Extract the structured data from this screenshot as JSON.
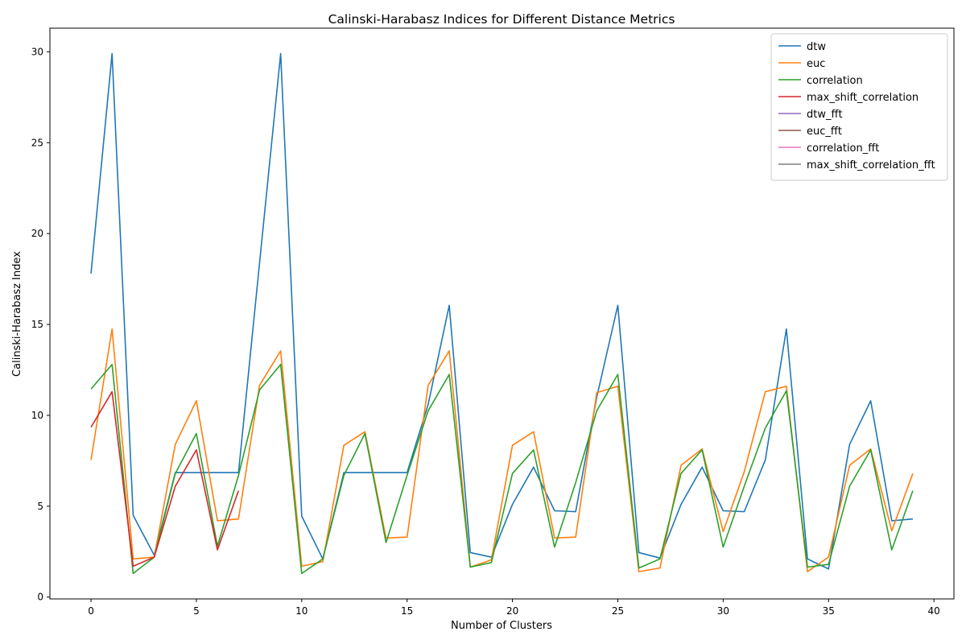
{
  "chart_data": {
    "type": "line",
    "title": "Calinski-Harabasz Indices for Different Distance Metrics",
    "xlabel": "Number of Clusters",
    "ylabel": "Calinski-Harabasz Index",
    "xlim": [
      -1.95,
      40.95
    ],
    "ylim": [
      -0.1,
      31.3
    ],
    "xticks": [
      0,
      5,
      10,
      15,
      20,
      25,
      30,
      35,
      40
    ],
    "yticks": [
      0,
      5,
      10,
      15,
      20,
      25,
      30
    ],
    "grid": false,
    "legend_position": "top-right",
    "series": [
      {
        "name": "dtw",
        "color": "#1f77b4",
        "x": [
          0,
          1,
          2,
          3,
          4,
          5,
          6,
          7,
          8,
          9,
          10,
          11,
          12,
          13,
          14,
          15,
          16,
          17,
          18,
          19,
          20,
          21,
          22,
          23,
          24,
          25,
          26,
          27,
          28,
          29,
          30,
          31,
          32,
          33,
          34,
          35,
          36,
          37,
          38,
          39
        ],
        "values": [
          17.8,
          29.9,
          4.5,
          2.3,
          6.85,
          6.85,
          6.85,
          6.85,
          18.4,
          29.9,
          4.45,
          2.1,
          6.85,
          6.85,
          6.85,
          6.85,
          10.6,
          16.05,
          2.45,
          2.2,
          5.1,
          7.15,
          4.75,
          4.7,
          11.0,
          16.05,
          2.45,
          2.15,
          5.1,
          7.15,
          4.75,
          4.7,
          7.55,
          14.75,
          2.1,
          1.55,
          8.4,
          10.8,
          4.2,
          4.3
        ]
      },
      {
        "name": "euc",
        "color": "#ff7f0e",
        "x": [
          0,
          1,
          2,
          3,
          4,
          5,
          6,
          7,
          8,
          9,
          10,
          11,
          12,
          13,
          14,
          15,
          16,
          17,
          18,
          19,
          20,
          21,
          22,
          23,
          24,
          25,
          26,
          27,
          28,
          29,
          30,
          31,
          32,
          33,
          34,
          35,
          36,
          37,
          38,
          39
        ],
        "values": [
          7.55,
          14.75,
          2.1,
          2.2,
          8.4,
          10.8,
          4.2,
          4.3,
          11.65,
          13.55,
          1.7,
          1.95,
          8.35,
          9.1,
          3.25,
          3.3,
          11.65,
          13.55,
          1.65,
          2.05,
          8.35,
          9.1,
          3.25,
          3.3,
          11.25,
          11.6,
          1.4,
          1.6,
          7.25,
          8.15,
          3.6,
          6.9,
          11.3,
          11.6,
          1.4,
          2.2,
          7.25,
          8.15,
          3.65,
          6.8
        ]
      },
      {
        "name": "correlation",
        "color": "#2ca02c",
        "x": [
          0,
          1,
          2,
          3,
          4,
          5,
          6,
          7,
          8,
          9,
          10,
          11,
          12,
          13,
          14,
          15,
          16,
          17,
          18,
          19,
          20,
          21,
          22,
          23,
          24,
          25,
          26,
          27,
          28,
          29,
          30,
          31,
          32,
          33,
          34,
          35,
          36,
          37,
          38,
          39
        ],
        "values": [
          11.45,
          12.8,
          1.3,
          2.2,
          6.8,
          9.0,
          2.8,
          6.7,
          11.4,
          12.8,
          1.3,
          2.1,
          6.7,
          9.0,
          3.0,
          6.7,
          10.25,
          12.25,
          1.65,
          1.9,
          6.8,
          8.1,
          2.75,
          6.3,
          10.25,
          12.25,
          1.6,
          2.1,
          6.8,
          8.1,
          2.75,
          6.1,
          9.3,
          11.35,
          1.65,
          1.8,
          6.1,
          8.1,
          2.6,
          5.85
        ]
      },
      {
        "name": "max_shift_correlation",
        "color": "#d62728",
        "x": [
          0,
          1,
          2,
          3,
          4,
          5,
          6,
          7
        ],
        "values": [
          9.35,
          11.3,
          1.7,
          2.2,
          6.1,
          8.1,
          2.6,
          5.85
        ]
      },
      {
        "name": "dtw_fft",
        "color": "#9467bd",
        "x": [],
        "values": []
      },
      {
        "name": "euc_fft",
        "color": "#8c564b",
        "x": [],
        "values": []
      },
      {
        "name": "correlation_fft",
        "color": "#e377c2",
        "x": [],
        "values": []
      },
      {
        "name": "max_shift_correlation_fft",
        "color": "#7f7f7f",
        "x": [],
        "values": []
      }
    ]
  }
}
